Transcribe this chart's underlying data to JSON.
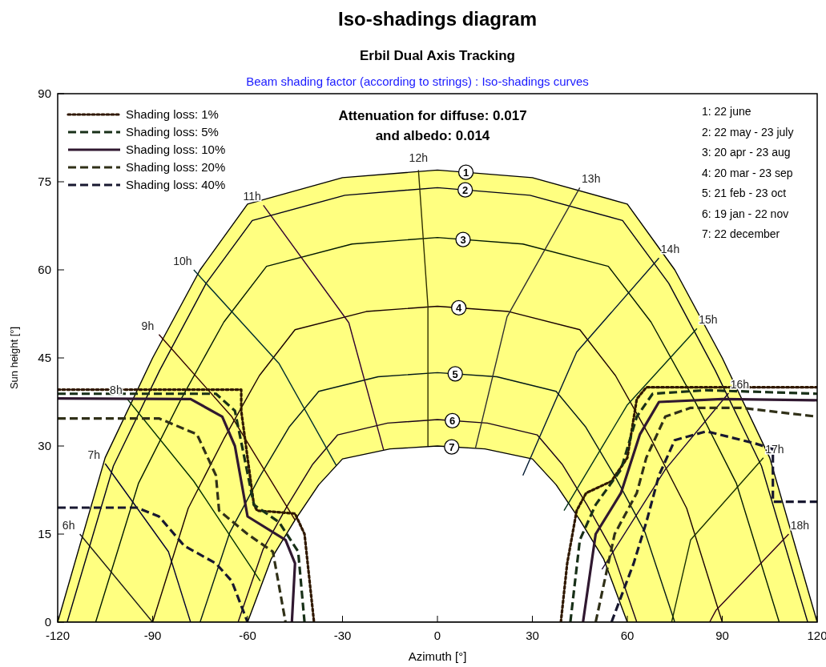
{
  "chart_data": {
    "type": "line",
    "title": "Iso-shadings diagram",
    "subtitle": "Erbil Dual Axis Tracking",
    "xlabel": "Azimuth [°]",
    "ylabel": "Sun height [°]",
    "xlim": [
      -120,
      120
    ],
    "ylim": [
      0,
      90
    ],
    "xticks": [
      -120,
      -90,
      -60,
      -30,
      0,
      30,
      60,
      90,
      120
    ],
    "yticks": [
      0,
      15,
      30,
      45,
      60,
      75,
      90
    ],
    "grid": false,
    "legend": "top left",
    "marker": "none",
    "annotations": [
      "Beam shading factor (according to strings) : Iso-shadings curves",
      "Attenuation for diffuse: 0.017",
      "and albedo: 0.014",
      "1: 22 june",
      "2: 22 may - 23 july",
      "3: 20 apr - 23 aug",
      "4: 20 mar - 23 sep",
      "5: 21 feb - 23 oct",
      "6: 19 jan - 22 nov",
      "7: 22 december",
      {
        "text": "6h",
        "x": -113,
        "y": 15
      },
      {
        "text": "7h",
        "x": -105,
        "y": 27
      },
      {
        "text": "8h",
        "x": -98,
        "y": 38
      },
      {
        "text": "9h",
        "x": -88,
        "y": 49
      },
      {
        "text": "10h",
        "x": -77,
        "y": 60
      },
      {
        "text": "11h",
        "x": -55,
        "y": 71
      },
      {
        "text": "12h",
        "x": -6,
        "y": 77
      },
      {
        "text": "13h",
        "x": 45,
        "y": 74
      },
      {
        "text": "14h",
        "x": 70,
        "y": 62
      },
      {
        "text": "15h",
        "x": 82,
        "y": 50
      },
      {
        "text": "16h",
        "x": 92,
        "y": 39
      },
      {
        "text": "17h",
        "x": 103,
        "y": 28
      },
      {
        "text": "18h",
        "x": 111,
        "y": 15
      }
    ],
    "series": [
      {
        "name": "1",
        "type": "area",
        "color": "#ffff80",
        "x": [
          -120,
          -105,
          -90,
          -75,
          -60,
          -30,
          0,
          30,
          60,
          75,
          90,
          105,
          120
        ],
        "values": [
          0,
          28,
          45,
          60,
          71.2,
          75.7,
          77,
          75.7,
          71.2,
          60,
          45,
          28,
          0
        ]
      },
      {
        "name": "7",
        "type": "area",
        "color": "#ffffff",
        "x": [
          -60,
          -52.5,
          -45,
          -37.5,
          -30,
          -15,
          0,
          15,
          30,
          37.5,
          45,
          52.5,
          60
        ],
        "values": [
          0,
          10.8,
          17.4,
          23.4,
          27.8,
          29.5,
          30,
          29.5,
          27.8,
          23.4,
          17.4,
          10.8,
          0
        ]
      },
      {
        "name": "2",
        "color": "#000018",
        "x": [
          -117,
          -102.4,
          -87.75,
          -73.1,
          -58.5,
          -29.25,
          0,
          29.25,
          58.5,
          73.1,
          87.75,
          102.4,
          117
        ],
        "values": [
          0,
          26.6,
          42.9,
          57.7,
          68.4,
          72.7,
          74,
          72.7,
          68.4,
          57.7,
          42.9,
          26.6,
          0
        ]
      },
      {
        "name": "3",
        "color": "#001800",
        "x": [
          -108,
          -94.5,
          -81,
          -67.5,
          -54,
          -27,
          0,
          27,
          54,
          67.5,
          81,
          94.5,
          108
        ],
        "values": [
          0,
          23.6,
          38,
          51.1,
          60.6,
          64.4,
          65.5,
          64.4,
          60.6,
          51.1,
          38,
          23.6,
          0
        ]
      },
      {
        "name": "4",
        "color": "#180000",
        "x": [
          -90,
          -78.75,
          -67.5,
          -56.25,
          -45,
          -22.5,
          0,
          22.5,
          45,
          56.25,
          67.5,
          78.75,
          90
        ],
        "values": [
          0,
          19.4,
          31.2,
          42,
          49.8,
          52.9,
          53.8,
          52.9,
          49.8,
          42,
          31.2,
          19.4,
          0
        ]
      },
      {
        "name": "5",
        "color": "#001818",
        "x": [
          -75,
          -65.6,
          -56.25,
          -46.9,
          -37.5,
          -18.75,
          0,
          18.75,
          37.5,
          46.9,
          56.25,
          65.6,
          75
        ],
        "values": [
          0,
          15.3,
          24.7,
          33.2,
          39.3,
          41.8,
          42.5,
          41.8,
          39.3,
          33.2,
          24.7,
          15.3,
          0
        ]
      },
      {
        "name": "6",
        "color": "#180018",
        "x": [
          -63,
          -55.1,
          -47.25,
          -39.4,
          -31.5,
          -15.75,
          0,
          15.75,
          31.5,
          39.4,
          47.25,
          55.1,
          63
        ],
        "values": [
          0,
          12.4,
          20,
          26.9,
          31.9,
          33.9,
          34.5,
          33.9,
          31.9,
          26.9,
          20,
          12.4,
          0
        ]
      },
      {
        "color": "#181818",
        "line_style": "solid",
        "x": [
          -113,
          -90
        ],
        "values": [
          15,
          0
        ]
      },
      {
        "color": "#000030",
        "line_style": "solid",
        "x": [
          -105,
          -85,
          -78
        ],
        "values": [
          27,
          12,
          0
        ]
      },
      {
        "color": "#003000",
        "line_style": "solid",
        "x": [
          -98,
          -77,
          -56
        ],
        "values": [
          38,
          24,
          7
        ]
      },
      {
        "color": "#300000",
        "line_style": "solid",
        "x": [
          -88,
          -65,
          -45
        ],
        "values": [
          49,
          35,
          17.4
        ]
      },
      {
        "color": "#003030",
        "line_style": "solid",
        "x": [
          -77,
          -50,
          -32
        ],
        "values": [
          60,
          44,
          26.7
        ]
      },
      {
        "color": "#300030",
        "line_style": "solid",
        "x": [
          -55,
          -28,
          -17
        ],
        "values": [
          71,
          51,
          29.3
        ]
      },
      {
        "color": "#303000",
        "line_style": "solid",
        "x": [
          -6,
          -3,
          -3
        ],
        "values": [
          77,
          53.8,
          30
        ]
      },
      {
        "color": "#303030",
        "line_style": "solid",
        "x": [
          45,
          22,
          12
        ],
        "values": [
          74,
          52,
          29.6
        ]
      },
      {
        "color": "#001830",
        "line_style": "solid",
        "x": [
          70,
          44,
          27
        ],
        "values": [
          62,
          46,
          25
        ]
      },
      {
        "color": "#003018",
        "line_style": "solid",
        "x": [
          82,
          60,
          40
        ],
        "values": [
          50,
          37,
          19
        ]
      },
      {
        "color": "#180030",
        "line_style": "solid",
        "x": [
          92,
          72,
          52
        ],
        "values": [
          39,
          26,
          9
        ]
      },
      {
        "color": "#183000",
        "line_style": "solid",
        "x": [
          103,
          80,
          74
        ],
        "values": [
          28,
          14,
          0
        ]
      },
      {
        "color": "#300018",
        "line_style": "solid",
        "x": [
          111,
          88,
          86
        ],
        "values": [
          15,
          2,
          0
        ]
      },
      {
        "name": "Shading loss: 1%",
        "color": "#301800",
        "line_style": "dotted",
        "x": [
          -120,
          -62,
          -62,
          -58,
          -57,
          -45,
          -42,
          -39,
          null,
          39,
          41,
          44,
          47,
          55,
          60,
          63,
          66,
          120
        ],
        "values": [
          39.6,
          39.6,
          36,
          20,
          19,
          18.5,
          15,
          0,
          null,
          0,
          10,
          19,
          22,
          24,
          28,
          38,
          40,
          40
        ]
      },
      {
        "name": "Shading loss: 5%",
        "color": "#183018",
        "line_style": "dashed",
        "x": [
          -120,
          -70,
          -64,
          -61,
          -58,
          -50,
          -44,
          -42,
          null,
          42,
          45,
          50,
          58,
          63,
          68,
          85,
          120
        ],
        "values": [
          38.9,
          38.9,
          36,
          28,
          20,
          17,
          12,
          0,
          null,
          0,
          14,
          20,
          26,
          35,
          38.9,
          39.5,
          38.9
        ]
      },
      {
        "name": "Shading loss: 10%",
        "color": "#301830",
        "line_style": "solid",
        "x": [
          -120,
          -78,
          -68,
          -64,
          -60,
          -48,
          -45,
          -46,
          null,
          46,
          50,
          58,
          64,
          70,
          90,
          120
        ],
        "values": [
          38.1,
          38,
          35,
          30,
          18,
          14,
          10,
          0,
          null,
          0,
          15,
          22,
          32,
          37.5,
          38,
          37.8
        ]
      },
      {
        "name": "Shading loss: 20%",
        "color": "#303018",
        "line_style": "dashed",
        "x": [
          -120,
          -88,
          -76,
          -70,
          -69,
          -60,
          -52,
          -48,
          null,
          50,
          56,
          63,
          66,
          72,
          80,
          96,
          120
        ],
        "values": [
          34.7,
          34.7,
          32,
          25,
          19,
          15,
          12,
          0,
          null,
          0,
          15,
          22,
          28,
          35,
          36.5,
          36.5,
          35
        ]
      },
      {
        "name": "Shading loss: 40%",
        "color": "#181830",
        "line_style": "dashed",
        "x": [
          -120,
          -95,
          -88,
          -80,
          -70,
          -65,
          -60,
          null,
          55,
          62,
          66,
          70,
          75,
          85,
          100,
          106,
          106,
          120
        ],
        "values": [
          19.5,
          19.5,
          18,
          13,
          10,
          7,
          0,
          null,
          0,
          10,
          17,
          25,
          31,
          32.5,
          30.5,
          29.5,
          20.5,
          20.5
        ]
      }
    ]
  }
}
